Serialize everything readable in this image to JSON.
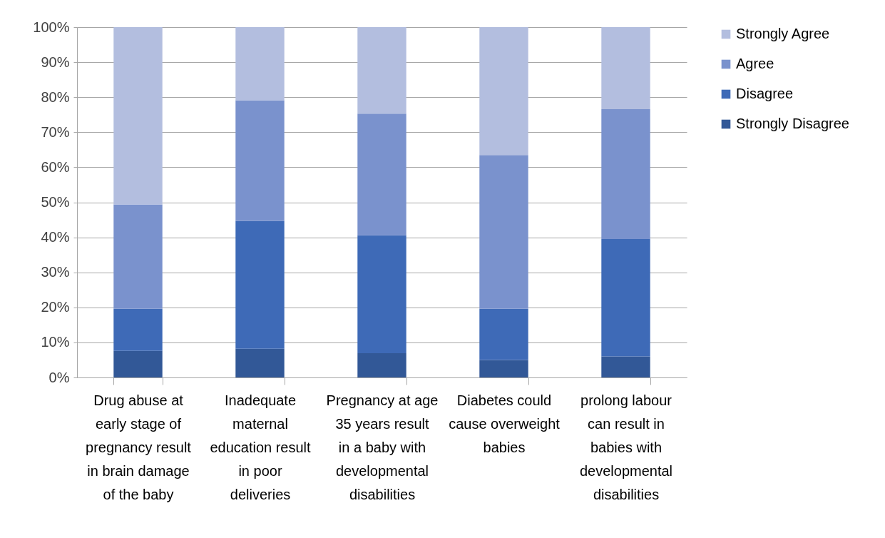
{
  "chart_data": {
    "type": "bar",
    "stacked": true,
    "categories": [
      "Drug abuse at early stage of pregnancy result in brain damage of the baby",
      "Inadequate maternal education result in poor deliveries",
      "Pregnancy at age 35 years result in  a baby with developmental disabilities",
      "Diabetes could cause overweight babies",
      "prolong labour can result in babies with developmental disabilities"
    ],
    "series": [
      {
        "name": "Strongly Disagree",
        "color": "#325897",
        "values": [
          7.6,
          8.2,
          6.9,
          5.0,
          6.0
        ]
      },
      {
        "name": "Disagree",
        "color": "#3e6ab7",
        "values": [
          12.0,
          36.5,
          33.7,
          14.6,
          33.5
        ]
      },
      {
        "name": "Agree",
        "color": "#7a92cd",
        "values": [
          29.8,
          34.4,
          34.7,
          43.9,
          37.1
        ]
      },
      {
        "name": "Strongly Agree",
        "color": "#b3bedf",
        "values": [
          50.6,
          20.9,
          24.7,
          36.5,
          23.4
        ]
      }
    ],
    "ylim": [
      0,
      100
    ],
    "yticks": [
      {
        "value": 0,
        "label": "0%"
      },
      {
        "value": 10,
        "label": "10%"
      },
      {
        "value": 20,
        "label": "20%"
      },
      {
        "value": 30,
        "label": "30%"
      },
      {
        "value": 40,
        "label": "40%"
      },
      {
        "value": 50,
        "label": "50%"
      },
      {
        "value": 60,
        "label": "60%"
      },
      {
        "value": 70,
        "label": "70%"
      },
      {
        "value": 80,
        "label": "80%"
      },
      {
        "value": 90,
        "label": "90%"
      },
      {
        "value": 100,
        "label": "100%"
      }
    ],
    "grid": "y",
    "legend": "right"
  }
}
